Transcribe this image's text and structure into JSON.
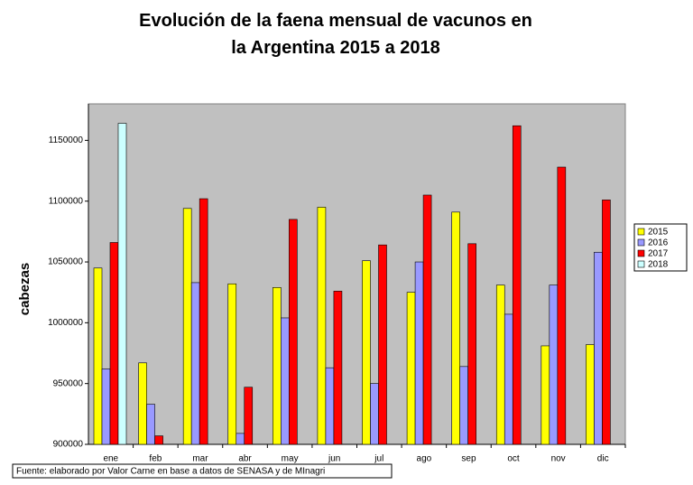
{
  "chart_data": {
    "type": "bar",
    "title": "Evolución de la faena mensual de vacunos en la Argentina 2015 a 2018",
    "y_label": "cabezas",
    "source": "Fuente: elaborado  por Valor Carne en base a datos de SENASA y de MInagri",
    "categories": [
      "ene",
      "feb",
      "mar",
      "abr",
      "may",
      "jun",
      "jul",
      "ago",
      "sep",
      "oct",
      "nov",
      "dic"
    ],
    "series": [
      {
        "name": "2015",
        "color": "#ffff00",
        "values": [
          1045000,
          967000,
          1094000,
          1032000,
          1029000,
          1095000,
          1051000,
          1025000,
          1091000,
          1031000,
          981000,
          982000
        ]
      },
      {
        "name": "2016",
        "color": "#9999ff",
        "values": [
          962000,
          933000,
          1033000,
          909000,
          1004000,
          963000,
          950000,
          1050000,
          964000,
          1007000,
          1031000,
          1058000
        ]
      },
      {
        "name": "2017",
        "color": "#ff0000",
        "values": [
          1066000,
          907000,
          1102000,
          947000,
          1085000,
          1026000,
          1064000,
          1105000,
          1065000,
          1162000,
          1128000,
          1101000
        ]
      },
      {
        "name": "2018",
        "color": "#ccffff",
        "values": [
          1164000,
          null,
          null,
          null,
          null,
          null,
          null,
          null,
          null,
          null,
          null,
          null
        ]
      }
    ],
    "ylim": [
      900000,
      1180000
    ],
    "yticks": [
      900000,
      950000,
      1000000,
      1050000,
      1100000,
      1150000
    ],
    "legend": "right"
  }
}
